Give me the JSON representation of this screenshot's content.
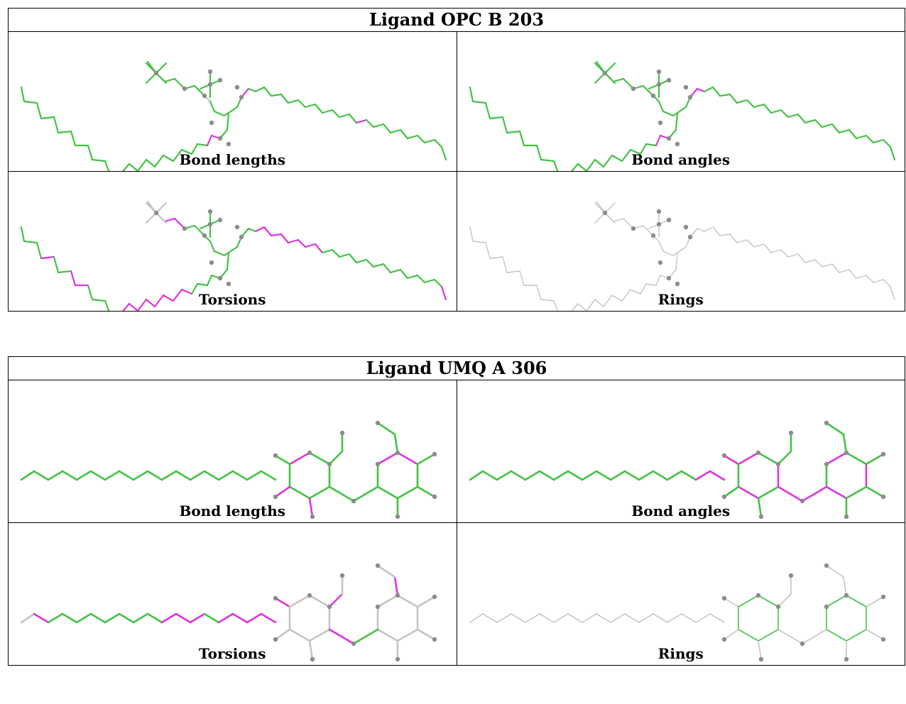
{
  "tables": [
    {
      "title": "Ligand OPC B 203",
      "panels": [
        {
          "label": "Bond lengths"
        },
        {
          "label": "Bond angles"
        },
        {
          "label": "Torsions"
        },
        {
          "label": "Rings"
        }
      ]
    },
    {
      "title": "Ligand UMQ A 306",
      "panels": [
        {
          "label": "Bond lengths"
        },
        {
          "label": "Bond angles"
        },
        {
          "label": "Torsions"
        },
        {
          "label": "Rings"
        }
      ]
    }
  ],
  "colors": {
    "ok": "#44c244",
    "outlier": "#dd33dd",
    "neutral": "#c4c4c4",
    "atom": "#8c8c8c",
    "border": "#000000"
  }
}
